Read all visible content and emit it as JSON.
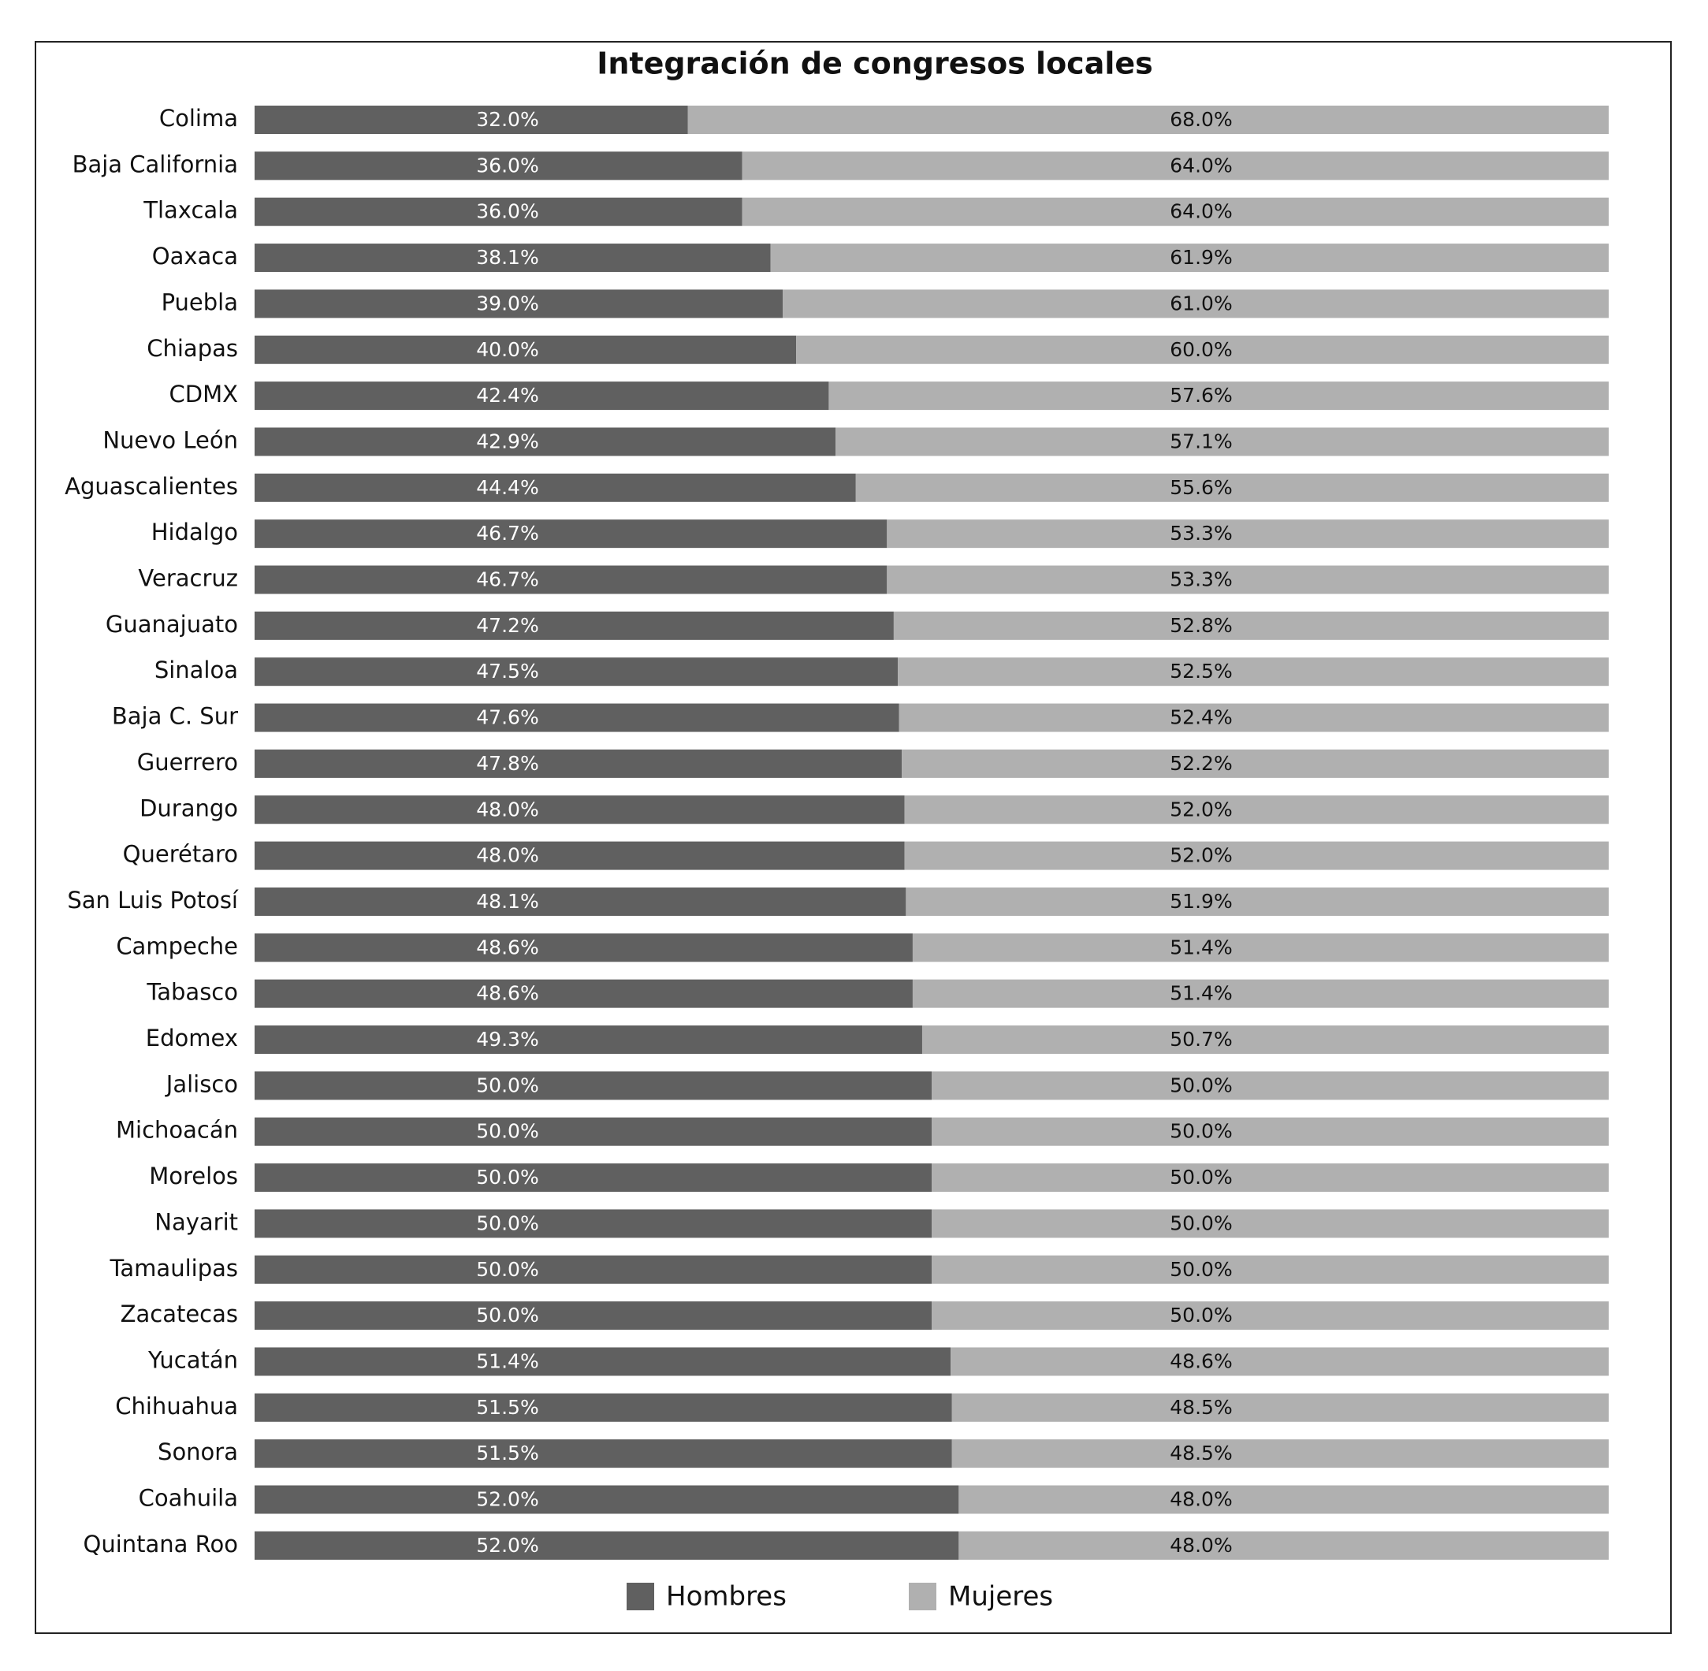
{
  "chart_data": {
    "type": "stacked-barh",
    "title": "Integración de congresos locales",
    "categories": [
      "Colima",
      "Baja California",
      "Tlaxcala",
      "Oaxaca",
      "Puebla",
      "Chiapas",
      "CDMX",
      "Nuevo León",
      "Aguascalientes",
      "Hidalgo",
      "Veracruz",
      "Guanajuato",
      "Sinaloa",
      "Baja C. Sur",
      "Guerrero",
      "Durango",
      "Querétaro",
      "San Luis Potosí",
      "Campeche",
      "Tabasco",
      "Edomex",
      "Jalisco",
      "Michoacán",
      "Morelos",
      "Nayarit",
      "Tamaulipas",
      "Zacatecas",
      "Yucatán",
      "Chihuahua",
      "Sonora",
      "Coahuila",
      "Quintana Roo"
    ],
    "xlim": [
      0,
      100
    ],
    "series": [
      {
        "name": "Hombres",
        "color": "#606060",
        "values": [
          32.0,
          36.0,
          36.0,
          38.1,
          39.0,
          40.0,
          42.4,
          42.9,
          44.4,
          46.7,
          46.7,
          47.2,
          47.5,
          47.6,
          47.8,
          48.0,
          48.0,
          48.1,
          48.6,
          48.6,
          49.3,
          50.0,
          50.0,
          50.0,
          50.0,
          50.0,
          50.0,
          51.4,
          51.5,
          51.5,
          52.0,
          52.0
        ],
        "value_labels": [
          "32.0%",
          "36.0%",
          "36.0%",
          "38.1%",
          "39.0%",
          "40.0%",
          "42.4%",
          "42.9%",
          "44.4%",
          "46.7%",
          "46.7%",
          "47.2%",
          "47.5%",
          "47.6%",
          "47.8%",
          "48.0%",
          "48.0%",
          "48.1%",
          "48.6%",
          "48.6%",
          "49.3%",
          "50.0%",
          "50.0%",
          "50.0%",
          "50.0%",
          "50.0%",
          "50.0%",
          "51.4%",
          "51.5%",
          "51.5%",
          "52.0%",
          "52.0%"
        ]
      },
      {
        "name": "Mujeres",
        "color": "#b0b0b0",
        "values": [
          68.0,
          64.0,
          64.0,
          61.9,
          61.0,
          60.0,
          57.6,
          57.1,
          55.6,
          53.3,
          53.3,
          52.8,
          52.5,
          52.4,
          52.2,
          52.0,
          52.0,
          51.9,
          51.4,
          51.4,
          50.7,
          50.0,
          50.0,
          50.0,
          50.0,
          50.0,
          50.0,
          48.6,
          48.5,
          48.5,
          48.0,
          48.0
        ],
        "value_labels": [
          "68.0%",
          "64.0%",
          "64.0%",
          "61.9%",
          "61.0%",
          "60.0%",
          "57.6%",
          "57.1%",
          "55.6%",
          "53.3%",
          "53.3%",
          "52.8%",
          "52.5%",
          "52.4%",
          "52.2%",
          "52.0%",
          "52.0%",
          "51.9%",
          "51.4%",
          "51.4%",
          "50.7%",
          "50.0%",
          "50.0%",
          "50.0%",
          "50.0%",
          "50.0%",
          "50.0%",
          "48.6%",
          "48.5%",
          "48.5%",
          "48.0%",
          "48.0%"
        ]
      }
    ]
  }
}
